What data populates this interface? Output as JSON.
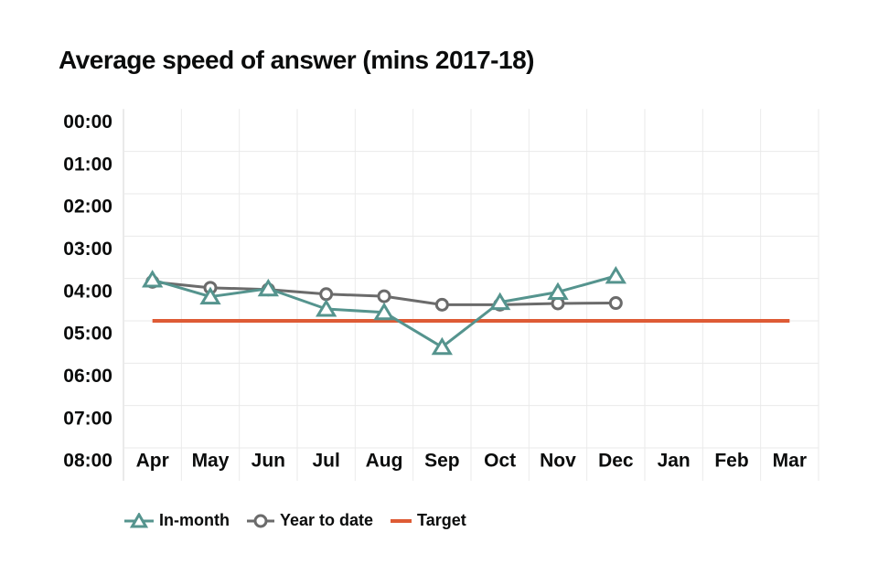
{
  "page": {
    "background_color": "#ffffff",
    "text_color": "#0b0c0c"
  },
  "chart_data": {
    "type": "line",
    "title": "Average speed of answer (mins 2017-18)",
    "xlabel": "",
    "ylabel": "",
    "y_axis": {
      "unit": "minutes (mm:ss)",
      "tick_labels": [
        "00:00",
        "01:00",
        "02:00",
        "03:00",
        "04:00",
        "05:00",
        "06:00",
        "07:00",
        "08:00"
      ],
      "min_minutes": 0,
      "max_minutes": 8,
      "inverted": true,
      "grid": true
    },
    "x_categories": [
      "Apr",
      "May",
      "Jun",
      "Jul",
      "Aug",
      "Sep",
      "Oct",
      "Nov",
      "Dec",
      "Jan",
      "Feb",
      "Mar"
    ],
    "series": [
      {
        "name": "In-month",
        "marker": "triangle",
        "color": "#55948E",
        "values_mins": [
          4.03,
          4.43,
          4.24,
          4.72,
          4.8,
          5.62,
          4.56,
          4.32,
          3.94,
          null,
          null,
          null
        ],
        "values_mmss": [
          "04:02",
          "04:26",
          "04:14",
          "04:43",
          "04:48",
          "05:37",
          "04:34",
          "04:19",
          "03:56",
          null,
          null,
          null
        ]
      },
      {
        "name": "Year to date",
        "marker": "circle",
        "color": "#6B6B6B",
        "values_mins": [
          4.08,
          4.22,
          4.26,
          4.37,
          4.42,
          4.62,
          4.62,
          4.59,
          4.58,
          null,
          null,
          null
        ],
        "values_mmss": [
          "04:05",
          "04:13",
          "04:16",
          "04:22",
          "04:25",
          "04:37",
          "04:37",
          "04:35",
          "04:35",
          null,
          null,
          null
        ]
      },
      {
        "name": "Target",
        "marker": "none",
        "color": "#DE5B35",
        "values_mins": [
          5,
          5,
          5,
          5,
          5,
          5,
          5,
          5,
          5,
          5,
          5,
          5
        ],
        "values_mmss": [
          "05:00",
          "05:00",
          "05:00",
          "05:00",
          "05:00",
          "05:00",
          "05:00",
          "05:00",
          "05:00",
          "05:00",
          "05:00",
          "05:00"
        ]
      }
    ],
    "legend": {
      "position": "bottom",
      "items": [
        "In-month",
        "Year to date",
        "Target"
      ]
    },
    "grid_color": "#EAEAEA",
    "axis_line_color": "#D6D6D6"
  }
}
